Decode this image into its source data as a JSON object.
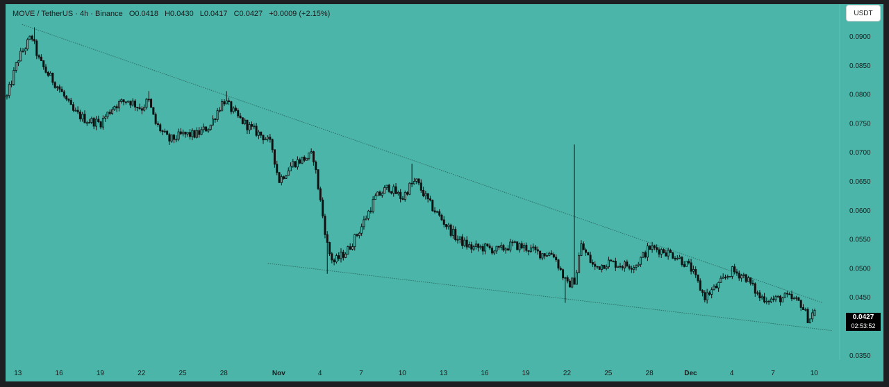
{
  "header": {
    "symbol": "MOVE / TetherUS · 4h · Binance",
    "open": "O0.0418",
    "high": "H0.0430",
    "low": "L0.0417",
    "close": "C0.0427",
    "change": "+0.0009 (+2.15%)"
  },
  "currency_button": "USDT",
  "price_tag": {
    "price": "0.0427",
    "countdown": "02:53:52"
  },
  "colors": {
    "background": "#4bb5a9",
    "candle": "#111111",
    "trendline": "#2f6f68"
  },
  "chart_data": {
    "type": "candlestick",
    "title": "",
    "xlabel": "",
    "ylabel": "",
    "ylim": [
      0.0345,
      0.0955
    ],
    "grid": false,
    "y_ticks": [
      "0.0900",
      "0.0850",
      "0.0800",
      "0.0750",
      "0.0700",
      "0.0650",
      "0.0600",
      "0.0550",
      "0.0500",
      "0.0450",
      "0.0400",
      "0.0350"
    ],
    "x_ticks": [
      {
        "label": "13",
        "day": 0
      },
      {
        "label": "16",
        "day": 3
      },
      {
        "label": "19",
        "day": 6
      },
      {
        "label": "22",
        "day": 9
      },
      {
        "label": "25",
        "day": 12
      },
      {
        "label": "28",
        "day": 15
      },
      {
        "label": "Nov",
        "day": 19
      },
      {
        "label": "4",
        "day": 22
      },
      {
        "label": "7",
        "day": 25
      },
      {
        "label": "10",
        "day": 28
      },
      {
        "label": "13",
        "day": 31
      },
      {
        "label": "16",
        "day": 34
      },
      {
        "label": "19",
        "day": 37
      },
      {
        "label": "22",
        "day": 40
      },
      {
        "label": "25",
        "day": 43
      },
      {
        "label": "28",
        "day": 46
      },
      {
        "label": "Dec",
        "day": 49
      },
      {
        "label": "4",
        "day": 52
      },
      {
        "label": "7",
        "day": 55
      },
      {
        "label": "10",
        "day": 58
      }
    ],
    "x_range_days": [
      -0.8,
      59.3
    ],
    "price_path_days": [
      -0.8,
      0,
      1,
      1.5,
      2,
      3,
      4,
      5,
      6,
      7,
      8,
      9,
      9.5,
      10,
      11,
      12,
      13,
      14,
      14.5,
      15,
      16,
      17,
      18,
      18.5,
      19,
      20,
      21,
      21.5,
      22,
      22.6,
      23,
      24,
      25,
      26,
      27,
      28,
      28.5,
      29,
      30,
      31,
      32,
      33,
      34,
      35,
      36,
      37,
      38,
      39,
      40,
      40.6,
      41,
      42,
      43,
      44,
      45,
      46,
      47,
      48,
      49,
      50,
      51,
      52,
      53,
      54,
      55,
      56,
      57,
      57.6,
      58
    ],
    "price_path_close": [
      0.0795,
      0.086,
      0.09,
      0.086,
      0.084,
      0.081,
      0.077,
      0.0755,
      0.075,
      0.078,
      0.079,
      0.0775,
      0.079,
      0.075,
      0.072,
      0.073,
      0.073,
      0.0745,
      0.077,
      0.079,
      0.076,
      0.074,
      0.0725,
      0.071,
      0.065,
      0.068,
      0.069,
      0.0695,
      0.062,
      0.053,
      0.051,
      0.053,
      0.057,
      0.062,
      0.064,
      0.062,
      0.064,
      0.065,
      0.061,
      0.058,
      0.055,
      0.0535,
      0.0535,
      0.053,
      0.054,
      0.0535,
      0.0525,
      0.0525,
      0.047,
      0.048,
      0.054,
      0.05,
      0.051,
      0.0505,
      0.0505,
      0.0535,
      0.053,
      0.052,
      0.05,
      0.045,
      0.047,
      0.0495,
      0.0485,
      0.045,
      0.0445,
      0.045,
      0.044,
      0.041,
      0.0427
    ],
    "wick_spikes": [
      {
        "day": 40.6,
        "high": 0.0713
      },
      {
        "day": 28.7,
        "high": 0.068
      },
      {
        "day": 1.2,
        "high": 0.0915
      },
      {
        "day": 15.2,
        "high": 0.0805
      },
      {
        "day": 9.5,
        "high": 0.0805
      },
      {
        "day": 22.6,
        "low": 0.049
      },
      {
        "day": 39.9,
        "low": 0.044
      }
    ],
    "trendlines": [
      {
        "name": "upper",
        "from": {
          "day": 0.3,
          "price": 0.092
        },
        "to": {
          "day": 58.6,
          "price": 0.044
        }
      },
      {
        "name": "lower",
        "from": {
          "day": 18.2,
          "price": 0.0508
        },
        "to": {
          "day": 59.3,
          "price": 0.0392
        }
      }
    ],
    "last": {
      "open": 0.0418,
      "high": 0.043,
      "low": 0.0417,
      "close": 0.0427
    }
  }
}
